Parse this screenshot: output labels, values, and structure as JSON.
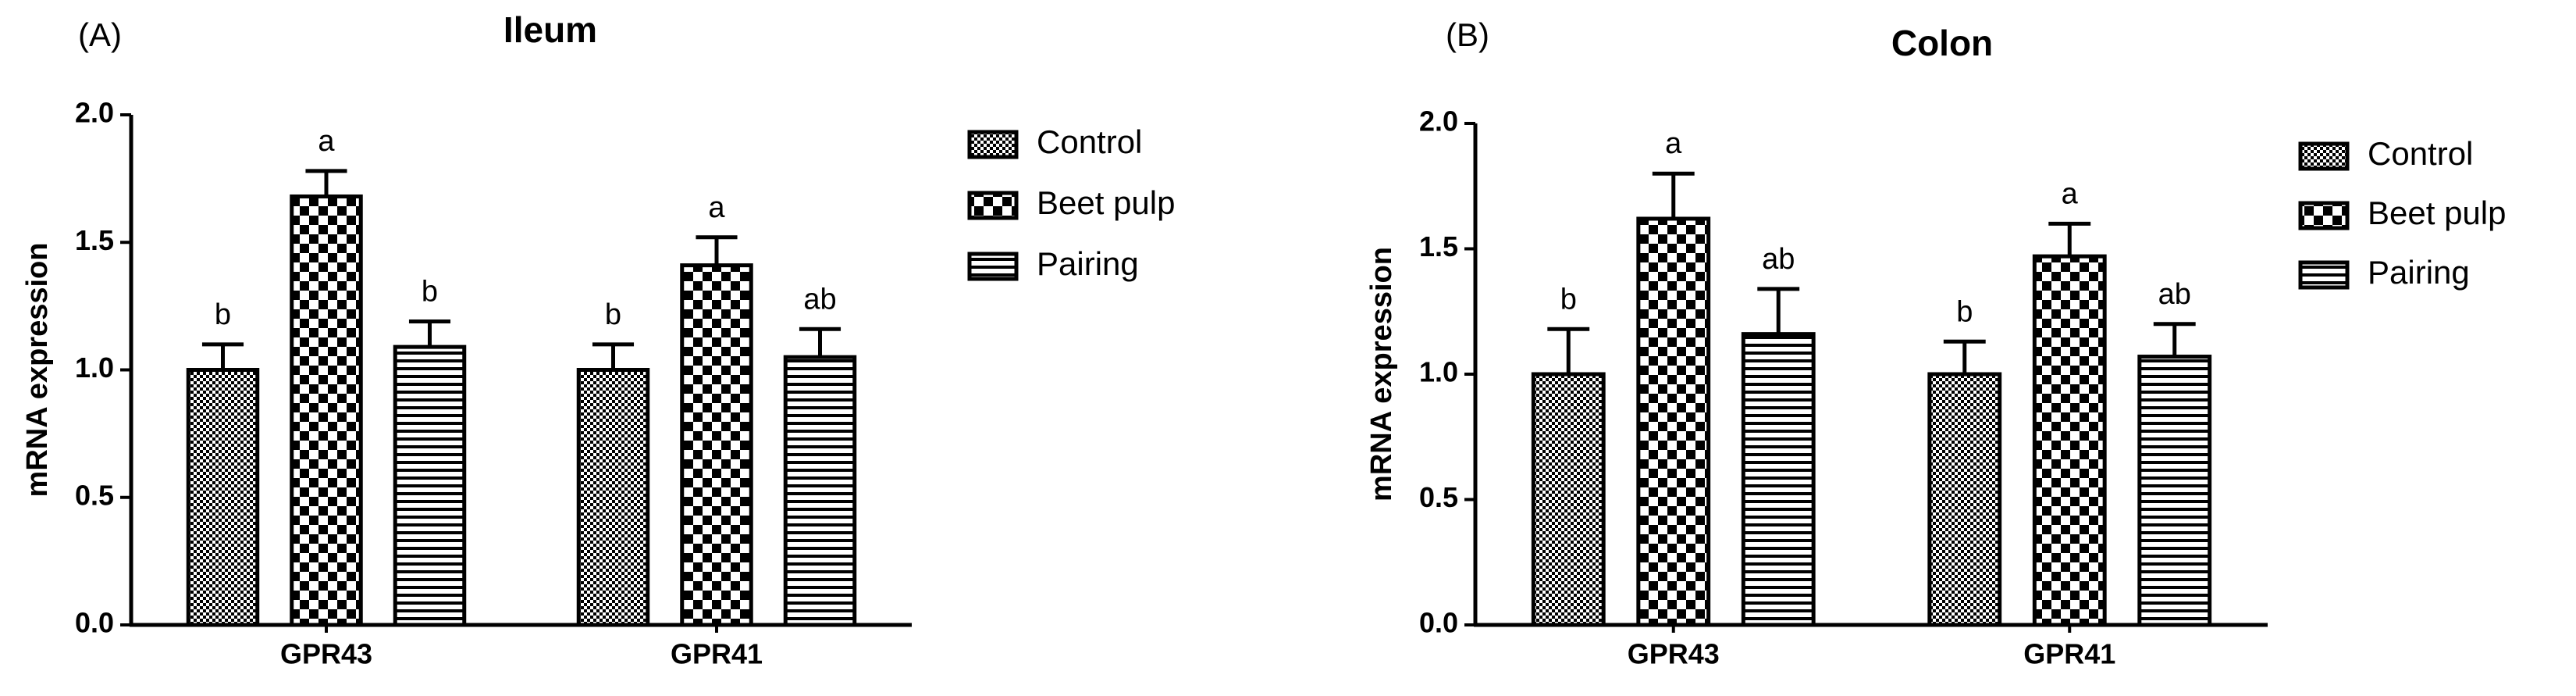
{
  "chart_data": [
    {
      "type": "bar",
      "panel": "(A)",
      "title": "Ileum",
      "ylabel": "mRNA expression",
      "categories": [
        "GPR43",
        "GPR41"
      ],
      "series": [
        {
          "name": "Control",
          "color": "#000000",
          "pattern": "dots",
          "values": [
            1.0,
            1.0
          ],
          "errors": [
            0.1,
            0.1
          ],
          "letters": [
            "b",
            "b"
          ]
        },
        {
          "name": "Beet pulp",
          "color": "#000000",
          "pattern": "checker",
          "values": [
            1.68,
            1.41
          ],
          "errors": [
            0.1,
            0.11
          ],
          "letters": [
            "a",
            "a"
          ]
        },
        {
          "name": "Pairing",
          "color": "#000000",
          "pattern": "hlines",
          "values": [
            1.09,
            1.05
          ],
          "errors": [
            0.1,
            0.11
          ],
          "letters": [
            "b",
            "ab"
          ]
        }
      ],
      "ylim": [
        0,
        2
      ],
      "yticks": [
        {
          "value": 0,
          "label": "0.0"
        },
        0.5,
        {
          "value": 1,
          "label": "1.0"
        },
        1.5,
        {
          "value": 2,
          "label": "2.0"
        }
      ],
      "grid": false,
      "legend": "right"
    },
    {
      "type": "bar",
      "panel": "(B)",
      "title": "Colon",
      "ylabel": "mRNA expression",
      "categories": [
        "GPR43",
        "GPR41"
      ],
      "series": [
        {
          "name": "Control",
          "color": "#000000",
          "pattern": "dots",
          "values": [
            1.0,
            1.0
          ],
          "errors": [
            0.18,
            0.13
          ],
          "letters": [
            "b",
            "b"
          ]
        },
        {
          "name": "Beet pulp",
          "color": "#000000",
          "pattern": "checker",
          "values": [
            1.62,
            1.47
          ],
          "errors": [
            0.18,
            0.13
          ],
          "letters": [
            "a",
            "a"
          ]
        },
        {
          "name": "Pairing",
          "color": "#000000",
          "pattern": "hlines",
          "values": [
            1.16,
            1.07
          ],
          "errors": [
            0.18,
            0.13
          ],
          "letters": [
            "ab",
            "ab"
          ]
        }
      ],
      "ylim": [
        0,
        2
      ],
      "yticks": [
        {
          "value": 0,
          "label": "0.0"
        },
        0.5,
        {
          "value": 1,
          "label": "1.0"
        },
        1.5,
        {
          "value": 2,
          "label": "2.0"
        }
      ],
      "grid": false,
      "legend": "right"
    }
  ]
}
